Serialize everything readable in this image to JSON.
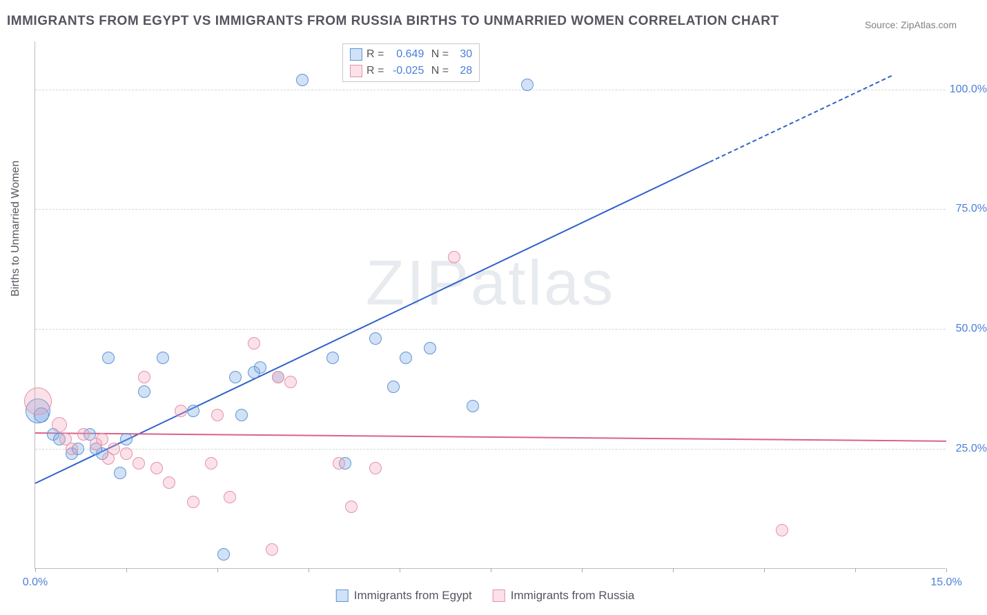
{
  "chart": {
    "title": "IMMIGRANTS FROM EGYPT VS IMMIGRANTS FROM RUSSIA BIRTHS TO UNMARRIED WOMEN CORRELATION CHART",
    "source": "Source: ZipAtlas.com",
    "watermark": "ZIPatlas",
    "y_axis_label": "Births to Unmarried Women",
    "type": "scatter",
    "background_color": "#ffffff",
    "grid_color": "#d5d5d5",
    "axis_color": "#bbbbbb",
    "tick_label_color": "#4a7fd8",
    "xlim": [
      0,
      15
    ],
    "ylim": [
      0,
      110
    ],
    "x_ticks": [
      0,
      1.5,
      3.0,
      4.5,
      6.0,
      7.5,
      9.0,
      10.5,
      12.0,
      13.5,
      15.0
    ],
    "x_tick_labels_shown": {
      "0": "0.0%",
      "15": "15.0%"
    },
    "y_grid": [
      25,
      50,
      75,
      100
    ],
    "y_tick_labels": {
      "25": "25.0%",
      "50": "50.0%",
      "75": "75.0%",
      "100": "100.0%"
    },
    "series": [
      {
        "name": "Immigrants from Egypt",
        "key": "egypt",
        "marker_color_fill": "rgba(122,170,228,0.35)",
        "marker_color_stroke": "#5d95d6",
        "trend_color": "#2e62c9",
        "r_value": "0.649",
        "n_value": "30",
        "trend": {
          "x1": 0,
          "y1": 18,
          "x2": 11.1,
          "y2": 85,
          "dash_to_x": 14.1,
          "dash_to_y": 103
        },
        "points": [
          {
            "x": 0.05,
            "y": 33,
            "r": 18
          },
          {
            "x": 0.1,
            "y": 32,
            "r": 11
          },
          {
            "x": 0.3,
            "y": 28,
            "r": 9
          },
          {
            "x": 0.6,
            "y": 24,
            "r": 9
          },
          {
            "x": 0.7,
            "y": 25,
            "r": 9
          },
          {
            "x": 0.9,
            "y": 28,
            "r": 9
          },
          {
            "x": 1.1,
            "y": 24,
            "r": 9
          },
          {
            "x": 1.2,
            "y": 44,
            "r": 9
          },
          {
            "x": 1.4,
            "y": 20,
            "r": 9
          },
          {
            "x": 1.5,
            "y": 27,
            "r": 9
          },
          {
            "x": 1.8,
            "y": 37,
            "r": 9
          },
          {
            "x": 2.1,
            "y": 44,
            "r": 9
          },
          {
            "x": 2.6,
            "y": 33,
            "r": 9
          },
          {
            "x": 3.1,
            "y": 3,
            "r": 9
          },
          {
            "x": 3.3,
            "y": 40,
            "r": 9
          },
          {
            "x": 3.4,
            "y": 32,
            "r": 9
          },
          {
            "x": 3.6,
            "y": 41,
            "r": 9
          },
          {
            "x": 3.7,
            "y": 42,
            "r": 9
          },
          {
            "x": 4.0,
            "y": 40,
            "r": 9
          },
          {
            "x": 4.4,
            "y": 102,
            "r": 9
          },
          {
            "x": 4.9,
            "y": 44,
            "r": 9
          },
          {
            "x": 5.1,
            "y": 22,
            "r": 9
          },
          {
            "x": 5.6,
            "y": 48,
            "r": 9
          },
          {
            "x": 5.9,
            "y": 38,
            "r": 9
          },
          {
            "x": 6.1,
            "y": 44,
            "r": 9
          },
          {
            "x": 6.5,
            "y": 46,
            "r": 9
          },
          {
            "x": 7.2,
            "y": 34,
            "r": 9
          },
          {
            "x": 8.1,
            "y": 101,
            "r": 9
          },
          {
            "x": 0.4,
            "y": 27,
            "r": 9
          },
          {
            "x": 1.0,
            "y": 25,
            "r": 9
          }
        ]
      },
      {
        "name": "Immigrants from Russia",
        "key": "russia",
        "marker_color_fill": "rgba(240,160,180,0.30)",
        "marker_color_stroke": "#e78fa9",
        "trend_color": "#de5f88",
        "r_value": "-0.025",
        "n_value": "28",
        "trend": {
          "x1": 0,
          "y1": 28.5,
          "x2": 15,
          "y2": 26.8
        },
        "points": [
          {
            "x": 0.05,
            "y": 35,
            "r": 20
          },
          {
            "x": 0.4,
            "y": 30,
            "r": 11
          },
          {
            "x": 0.6,
            "y": 25,
            "r": 9
          },
          {
            "x": 0.8,
            "y": 28,
            "r": 9
          },
          {
            "x": 1.0,
            "y": 26,
            "r": 9
          },
          {
            "x": 1.2,
            "y": 23,
            "r": 9
          },
          {
            "x": 1.3,
            "y": 25,
            "r": 9
          },
          {
            "x": 1.5,
            "y": 24,
            "r": 9
          },
          {
            "x": 1.7,
            "y": 22,
            "r": 9
          },
          {
            "x": 1.8,
            "y": 40,
            "r": 9
          },
          {
            "x": 2.0,
            "y": 21,
            "r": 9
          },
          {
            "x": 2.2,
            "y": 18,
            "r": 9
          },
          {
            "x": 2.4,
            "y": 33,
            "r": 9
          },
          {
            "x": 2.6,
            "y": 14,
            "r": 9
          },
          {
            "x": 2.9,
            "y": 22,
            "r": 9
          },
          {
            "x": 3.0,
            "y": 32,
            "r": 9
          },
          {
            "x": 3.2,
            "y": 15,
            "r": 9
          },
          {
            "x": 3.6,
            "y": 47,
            "r": 9
          },
          {
            "x": 3.9,
            "y": 4,
            "r": 9
          },
          {
            "x": 4.0,
            "y": 40,
            "r": 9
          },
          {
            "x": 4.2,
            "y": 39,
            "r": 9
          },
          {
            "x": 5.0,
            "y": 22,
            "r": 9
          },
          {
            "x": 5.2,
            "y": 13,
            "r": 9
          },
          {
            "x": 5.6,
            "y": 21,
            "r": 9
          },
          {
            "x": 6.9,
            "y": 65,
            "r": 9
          },
          {
            "x": 12.3,
            "y": 8,
            "r": 9
          },
          {
            "x": 0.5,
            "y": 27,
            "r": 9
          },
          {
            "x": 1.1,
            "y": 27,
            "r": 9
          }
        ]
      }
    ]
  }
}
